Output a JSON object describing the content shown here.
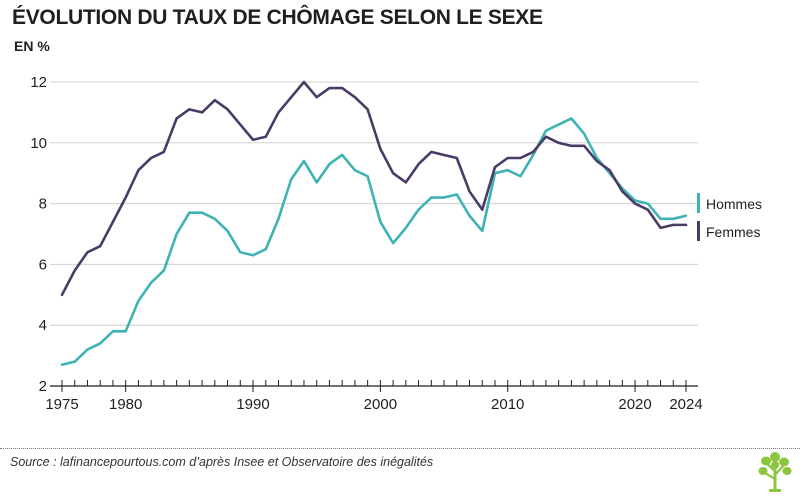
{
  "header": {
    "title": "ÉVOLUTION DU TAUX DE CHÔMAGE SELON LE SEXE",
    "unit": "EN %"
  },
  "footer": {
    "source": "Source : lafinancepourtous.com d’après Insee et Observatoire des inégalités",
    "logo_icon": "tree-logo-icon"
  },
  "colors": {
    "hommes": "#3fb3b3",
    "femmes": "#4a3b67",
    "axis": "#1f1f1f",
    "grid": "#d0d0d0"
  },
  "chart_data": {
    "type": "line",
    "title": "ÉVOLUTION DU TAUX DE CHÔMAGE SELON LE SEXE",
    "ylabel": "EN %",
    "xlim": [
      1975,
      2024
    ],
    "ylim": [
      2,
      12
    ],
    "x_ticks": [
      1975,
      1980,
      1990,
      2000,
      2010,
      2020,
      2024
    ],
    "y_ticks": [
      2,
      4,
      6,
      8,
      10,
      12
    ],
    "grid": "horizontal",
    "legend": "right",
    "x": [
      1975,
      1976,
      1977,
      1978,
      1979,
      1980,
      1981,
      1982,
      1983,
      1984,
      1985,
      1986,
      1987,
      1988,
      1989,
      1990,
      1991,
      1992,
      1993,
      1994,
      1995,
      1996,
      1997,
      1998,
      1999,
      2000,
      2001,
      2002,
      2003,
      2004,
      2005,
      2006,
      2007,
      2008,
      2009,
      2010,
      2011,
      2012,
      2013,
      2014,
      2015,
      2016,
      2017,
      2018,
      2019,
      2020,
      2021,
      2022,
      2023,
      2024
    ],
    "series": [
      {
        "name": "Hommes",
        "values": [
          2.7,
          2.8,
          3.2,
          3.4,
          3.8,
          3.8,
          4.8,
          5.4,
          5.8,
          7.0,
          7.7,
          7.7,
          7.5,
          7.1,
          6.4,
          6.3,
          6.5,
          7.5,
          8.8,
          9.4,
          8.7,
          9.3,
          9.6,
          9.1,
          8.9,
          7.4,
          6.7,
          7.2,
          7.8,
          8.2,
          8.2,
          8.3,
          7.6,
          7.1,
          9.0,
          9.1,
          8.9,
          9.6,
          10.4,
          10.6,
          10.8,
          10.3,
          9.5,
          9.0,
          8.5,
          8.1,
          8.0,
          7.5,
          7.5,
          7.6
        ]
      },
      {
        "name": "Femmes",
        "values": [
          5.0,
          5.8,
          6.4,
          6.6,
          7.4,
          8.2,
          9.1,
          9.5,
          9.7,
          10.8,
          11.1,
          11.0,
          11.4,
          11.1,
          10.6,
          10.1,
          10.2,
          11.0,
          11.5,
          12.0,
          11.5,
          11.8,
          11.8,
          11.5,
          11.1,
          9.8,
          9.0,
          8.7,
          9.3,
          9.7,
          9.6,
          9.5,
          8.4,
          7.8,
          9.2,
          9.5,
          9.5,
          9.7,
          10.2,
          10.0,
          9.9,
          9.9,
          9.4,
          9.1,
          8.4,
          8.0,
          7.8,
          7.2,
          7.3,
          7.3
        ]
      }
    ]
  }
}
